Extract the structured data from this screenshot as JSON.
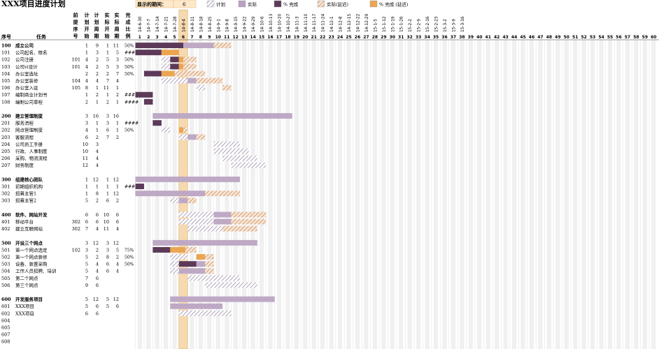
{
  "title": "XXX项目进度计划",
  "period_label": "显示的期间：",
  "period_value": "6",
  "legend": [
    {
      "key": "plan",
      "label": "计划"
    },
    {
      "key": "actual",
      "label": "实际"
    },
    {
      "key": "pct",
      "label": "% 完成"
    },
    {
      "key": "over",
      "label": "实际(延迟)"
    },
    {
      "key": "pctover",
      "label": "% 完成 (延迟)"
    }
  ],
  "colors": {
    "plan": "#9a8aa6",
    "actual": "#b9a2c1",
    "pct": "#5c3a58",
    "over": "#d4a077",
    "pctover": "#eba551",
    "highlight": "#f5d9b0",
    "highlight_border": "#e0a860",
    "grid": "#d8d8d8",
    "stripe": "#f0f0f0"
  },
  "headers": {
    "seq": "序号",
    "task": "任务",
    "pred": [
      "前",
      "提",
      "序",
      "号"
    ],
    "plan_start": [
      "计",
      "划",
      "开",
      "始"
    ],
    "plan_dur": [
      "计",
      "划",
      "周",
      "期"
    ],
    "act_start": [
      "实",
      "际",
      "开",
      "始"
    ],
    "act_dur": [
      "实",
      "际",
      "周",
      "期"
    ],
    "complete": [
      "完",
      "成",
      "比",
      "例"
    ]
  },
  "dates": [
    "14-6-30",
    "14-7-7",
    "14-7-14",
    "14-7-21",
    "14-7-28",
    "14-8-4",
    "14-8-11",
    "14-8-18",
    "14-8-25",
    "14-9-1",
    "14-9-8",
    "14-9-15",
    "14-9-22",
    "14-9-29",
    "14-10-6",
    "14-10-13",
    "14-10-20",
    "14-10-27",
    "14-11-3",
    "14-11-10",
    "14-11-17",
    "14-11-24",
    "14-12-1",
    "14-12-8",
    "14-12-15",
    "14-12-22",
    "14-12-29",
    "15-1-5",
    "15-1-12",
    "15-1-19",
    "15-1-26",
    "15-2-2",
    "15-2-9",
    "15-2-16",
    "15-2-23",
    "15-3-2",
    "15-3-9",
    "15-3-16"
  ],
  "periods": [
    1,
    2,
    3,
    4,
    5,
    6,
    7,
    8,
    9,
    10,
    11,
    12,
    13,
    14,
    15,
    16,
    17,
    18,
    19,
    20,
    21,
    22,
    23,
    24,
    25,
    26,
    27,
    28,
    29,
    30,
    31,
    32,
    33,
    34,
    35,
    36,
    37,
    38,
    39,
    40,
    41,
    42,
    43,
    44,
    45,
    46,
    47,
    48,
    49,
    50,
    51,
    52,
    53,
    54,
    55,
    56,
    57,
    58,
    59,
    60
  ],
  "rows": [
    {
      "id": "100",
      "name": "成立公司",
      "bold": true,
      "pred": "",
      "ps": "1",
      "pd": "9",
      "as": "1",
      "ad": "11",
      "pct": "50%"
    },
    {
      "id": "101",
      "name": "公司起名、核名",
      "pred": "",
      "ps": "1",
      "pd": "3",
      "as": "1",
      "ad": "5",
      "pct": "####"
    },
    {
      "id": "102",
      "name": "公司注册",
      "pred": "101",
      "ps": "4",
      "pd": "2",
      "as": "5",
      "ad": "3",
      "pct": "50%"
    },
    {
      "id": "103",
      "name": "公司vi设计",
      "pred": "101",
      "ps": "4",
      "pd": "2",
      "as": "5",
      "ad": "3",
      "pct": "50%"
    },
    {
      "id": "104",
      "name": "办公室选址",
      "pred": "",
      "ps": "2",
      "pd": "2",
      "as": "2",
      "ad": "7",
      "pct": "50%"
    },
    {
      "id": "105",
      "name": "办公室装修",
      "pred": "104",
      "ps": "4",
      "pd": "4",
      "as": "7",
      "ad": "4",
      "pct": ""
    },
    {
      "id": "106",
      "name": "办公室入驻",
      "pred": "105",
      "ps": "8",
      "pd": "1",
      "as": "11",
      "ad": "1",
      "pct": ""
    },
    {
      "id": "107",
      "name": "编制商业计划书",
      "pred": "",
      "ps": "1",
      "pd": "2",
      "as": "1",
      "ad": "2",
      "pct": "####"
    },
    {
      "id": "108",
      "name": "编制公司章程",
      "pred": "",
      "ps": "2",
      "pd": "1",
      "as": "2",
      "ad": "1",
      "pct": "####"
    },
    {
      "id": "",
      "name": "",
      "pred": "",
      "ps": "",
      "pd": "",
      "as": "",
      "ad": "",
      "pct": ""
    },
    {
      "id": "200",
      "name": "建立管理制度",
      "bold": true,
      "pred": "",
      "ps": "3",
      "pd": "16",
      "as": "3",
      "ad": "16",
      "pct": ""
    },
    {
      "id": "201",
      "name": "服务流程",
      "pred": "",
      "ps": "3",
      "pd": "1",
      "as": "3",
      "ad": "1",
      "pct": "####"
    },
    {
      "id": "202",
      "name": "网点管理制度",
      "pred": "",
      "ps": "4",
      "pd": "1",
      "as": "6",
      "ad": "1",
      "pct": "50%"
    },
    {
      "id": "203",
      "name": "客服流程",
      "pred": "",
      "ps": "6",
      "pd": "2",
      "as": "7",
      "ad": "2",
      "pct": ""
    },
    {
      "id": "204",
      "name": "公司员工手册",
      "pred": "",
      "ps": "10",
      "pd": "3",
      "as": "",
      "ad": "",
      "pct": ""
    },
    {
      "id": "205",
      "name": "行政、人事制度",
      "pred": "",
      "ps": "10",
      "pd": "4",
      "as": "",
      "ad": "",
      "pct": ""
    },
    {
      "id": "206",
      "name": "采购、物流流程",
      "pred": "",
      "ps": "11",
      "pd": "4",
      "as": "",
      "ad": "",
      "pct": ""
    },
    {
      "id": "207",
      "name": "财务制度",
      "pred": "",
      "ps": "12",
      "pd": "4",
      "as": "",
      "ad": "",
      "pct": ""
    },
    {
      "id": "",
      "name": "",
      "pred": "",
      "ps": "",
      "pd": "",
      "as": "",
      "ad": "",
      "pct": ""
    },
    {
      "id": "300",
      "name": "组建核心团队",
      "bold": true,
      "pred": "",
      "ps": "1",
      "pd": "12",
      "as": "1",
      "ad": "12",
      "pct": ""
    },
    {
      "id": "301",
      "name": "初期组织机构",
      "pred": "",
      "ps": "1",
      "pd": "1",
      "as": "1",
      "ad": "1",
      "pct": "####"
    },
    {
      "id": "302",
      "name": "招募主管1",
      "pred": "",
      "ps": "1",
      "pd": "8",
      "as": "1",
      "ad": "12",
      "pct": ""
    },
    {
      "id": "303",
      "name": "招募主管2",
      "pred": "",
      "ps": "5",
      "pd": "2",
      "as": "6",
      "ad": "2",
      "pct": ""
    },
    {
      "id": "",
      "name": "",
      "pred": "",
      "ps": "",
      "pd": "",
      "as": "",
      "ad": "",
      "pct": ""
    },
    {
      "id": "400",
      "name": "软件、网站开发",
      "bold": true,
      "pred": "",
      "ps": "6",
      "pd": "6",
      "as": "10",
      "ad": "6",
      "pct": ""
    },
    {
      "id": "401",
      "name": "移动平台",
      "pred": "302",
      "ps": "6",
      "pd": "6",
      "as": "10",
      "ad": "6",
      "pct": ""
    },
    {
      "id": "402",
      "name": "建立互联网站",
      "pred": "302",
      "ps": "7",
      "pd": "4",
      "as": "11",
      "ad": "4",
      "pct": ""
    },
    {
      "id": "",
      "name": "",
      "pred": "",
      "ps": "",
      "pd": "",
      "as": "",
      "ad": "",
      "pct": ""
    },
    {
      "id": "500",
      "name": "开设三个网点",
      "bold": true,
      "pred": "",
      "ps": "3",
      "pd": "12",
      "as": "3",
      "ad": "12",
      "pct": ""
    },
    {
      "id": "501",
      "name": "第一个网点选定",
      "pred": "102",
      "ps": "3",
      "pd": "2",
      "as": "3",
      "ad": "5",
      "pct": "75%"
    },
    {
      "id": "502",
      "name": "第一个网点装修",
      "pred": "",
      "ps": "5",
      "pd": "2",
      "as": "8",
      "ad": "2",
      "pct": "50%"
    },
    {
      "id": "503",
      "name": "设备、装置采购",
      "pred": "",
      "ps": "5",
      "pd": "4",
      "as": "6",
      "ad": "4",
      "pct": "50%"
    },
    {
      "id": "504",
      "name": "工作人员招聘、培训",
      "pred": "",
      "ps": "5",
      "pd": "4",
      "as": "6",
      "ad": "4",
      "pct": ""
    },
    {
      "id": "505",
      "name": "第二个网点",
      "pred": "",
      "ps": "7",
      "pd": "6",
      "as": "",
      "ad": "",
      "pct": ""
    },
    {
      "id": "506",
      "name": "第三个网点",
      "pred": "",
      "ps": "9",
      "pd": "6",
      "as": "",
      "ad": "",
      "pct": ""
    },
    {
      "id": "",
      "name": "",
      "pred": "",
      "ps": "",
      "pd": "",
      "as": "",
      "ad": "",
      "pct": ""
    },
    {
      "id": "600",
      "name": "开发服务项目",
      "bold": true,
      "pred": "",
      "ps": "5",
      "pd": "12",
      "as": "5",
      "ad": "12",
      "pct": ""
    },
    {
      "id": "601",
      "name": "XXX项目",
      "pred": "",
      "ps": "5",
      "pd": "6",
      "as": "5",
      "ad": "6",
      "pct": ""
    },
    {
      "id": "602",
      "name": "XXX项目",
      "pred": "",
      "ps": "6",
      "pd": "6",
      "as": "",
      "ad": "",
      "pct": ""
    },
    {
      "id": "604",
      "name": "",
      "pred": "",
      "ps": "",
      "pd": "",
      "as": "",
      "ad": "",
      "pct": ""
    },
    {
      "id": "605",
      "name": "",
      "pred": "",
      "ps": "",
      "pd": "",
      "as": "",
      "ad": "",
      "pct": ""
    },
    {
      "id": "607",
      "name": "",
      "pred": "",
      "ps": "",
      "pd": "",
      "as": "",
      "ad": "",
      "pct": ""
    },
    {
      "id": "608",
      "name": "",
      "pred": "",
      "ps": "",
      "pd": "",
      "as": "",
      "ad": "",
      "pct": ""
    }
  ],
  "chart_data": {
    "type": "bar",
    "title": "XXX项目进度计划",
    "highlight_period": 6,
    "series": [
      {
        "name": "计划",
        "bars": [
          {
            "row": "100",
            "start": 1,
            "dur": 9
          },
          {
            "row": "101",
            "start": 1,
            "dur": 3
          },
          {
            "row": "102",
            "start": 4,
            "dur": 2
          },
          {
            "row": "103",
            "start": 4,
            "dur": 2
          },
          {
            "row": "104",
            "start": 2,
            "dur": 2
          },
          {
            "row": "105",
            "start": 4,
            "dur": 4
          },
          {
            "row": "106",
            "start": 8,
            "dur": 1
          },
          {
            "row": "107",
            "start": 1,
            "dur": 2
          },
          {
            "row": "108",
            "start": 2,
            "dur": 1
          },
          {
            "row": "200",
            "start": 3,
            "dur": 16
          },
          {
            "row": "201",
            "start": 3,
            "dur": 1
          },
          {
            "row": "202",
            "start": 4,
            "dur": 1
          },
          {
            "row": "203",
            "start": 6,
            "dur": 2
          },
          {
            "row": "204",
            "start": 10,
            "dur": 3
          },
          {
            "row": "205",
            "start": 10,
            "dur": 4
          },
          {
            "row": "206",
            "start": 11,
            "dur": 4
          },
          {
            "row": "207",
            "start": 12,
            "dur": 4
          },
          {
            "row": "300",
            "start": 1,
            "dur": 12
          },
          {
            "row": "301",
            "start": 1,
            "dur": 1
          },
          {
            "row": "302",
            "start": 1,
            "dur": 8
          },
          {
            "row": "303",
            "start": 5,
            "dur": 2
          },
          {
            "row": "400",
            "start": 6,
            "dur": 6
          },
          {
            "row": "401",
            "start": 6,
            "dur": 6
          },
          {
            "row": "402",
            "start": 7,
            "dur": 4
          },
          {
            "row": "500",
            "start": 3,
            "dur": 12
          },
          {
            "row": "501",
            "start": 3,
            "dur": 2
          },
          {
            "row": "502",
            "start": 5,
            "dur": 2
          },
          {
            "row": "503",
            "start": 5,
            "dur": 4
          },
          {
            "row": "504",
            "start": 5,
            "dur": 4
          },
          {
            "row": "505",
            "start": 7,
            "dur": 6
          },
          {
            "row": "506",
            "start": 9,
            "dur": 6
          },
          {
            "row": "600",
            "start": 5,
            "dur": 12
          },
          {
            "row": "601",
            "start": 5,
            "dur": 6
          },
          {
            "row": "602",
            "start": 6,
            "dur": 6
          }
        ]
      },
      {
        "name": "实际",
        "bars": [
          {
            "row": "100",
            "start": 1,
            "dur": 11
          },
          {
            "row": "101",
            "start": 1,
            "dur": 5
          },
          {
            "row": "102",
            "start": 5,
            "dur": 3
          },
          {
            "row": "103",
            "start": 5,
            "dur": 3
          },
          {
            "row": "104",
            "start": 2,
            "dur": 7
          },
          {
            "row": "105",
            "start": 7,
            "dur": 4
          },
          {
            "row": "106",
            "start": 11,
            "dur": 1
          },
          {
            "row": "107",
            "start": 1,
            "dur": 2
          },
          {
            "row": "108",
            "start": 2,
            "dur": 1
          },
          {
            "row": "200",
            "start": 3,
            "dur": 16
          },
          {
            "row": "201",
            "start": 3,
            "dur": 1
          },
          {
            "row": "202",
            "start": 6,
            "dur": 1
          },
          {
            "row": "203",
            "start": 7,
            "dur": 2
          },
          {
            "row": "300",
            "start": 1,
            "dur": 12
          },
          {
            "row": "301",
            "start": 1,
            "dur": 1
          },
          {
            "row": "302",
            "start": 1,
            "dur": 12
          },
          {
            "row": "303",
            "start": 6,
            "dur": 2
          },
          {
            "row": "400",
            "start": 10,
            "dur": 6
          },
          {
            "row": "401",
            "start": 10,
            "dur": 6
          },
          {
            "row": "402",
            "start": 11,
            "dur": 4
          },
          {
            "row": "500",
            "start": 3,
            "dur": 12
          },
          {
            "row": "501",
            "start": 3,
            "dur": 5
          },
          {
            "row": "502",
            "start": 8,
            "dur": 2
          },
          {
            "row": "503",
            "start": 6,
            "dur": 4
          },
          {
            "row": "504",
            "start": 6,
            "dur": 4
          },
          {
            "row": "600",
            "start": 5,
            "dur": 12
          },
          {
            "row": "601",
            "start": 5,
            "dur": 6
          }
        ]
      },
      {
        "name": "% 完成",
        "values": [
          {
            "row": "100",
            "pct": 50
          },
          {
            "row": "101",
            "pct": 100
          },
          {
            "row": "102",
            "pct": 50
          },
          {
            "row": "103",
            "pct": 50
          },
          {
            "row": "104",
            "pct": 50
          },
          {
            "row": "107",
            "pct": 100
          },
          {
            "row": "108",
            "pct": 100
          },
          {
            "row": "201",
            "pct": 100
          },
          {
            "row": "202",
            "pct": 50
          },
          {
            "row": "301",
            "pct": 100
          },
          {
            "row": "501",
            "pct": 75
          },
          {
            "row": "502",
            "pct": 50
          },
          {
            "row": "503",
            "pct": 50
          }
        ]
      }
    ]
  }
}
